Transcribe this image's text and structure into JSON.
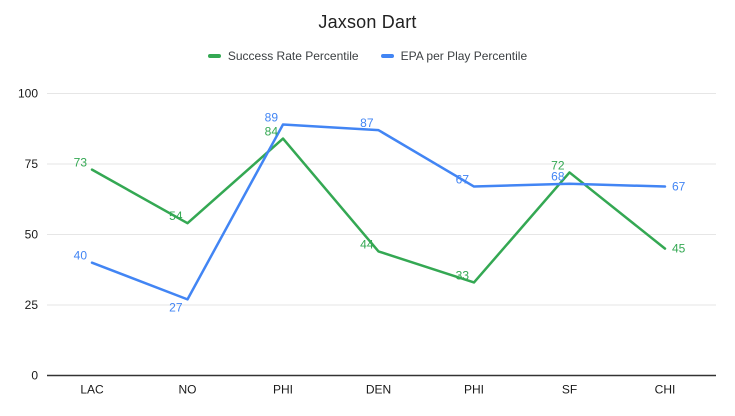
{
  "title": "Jaxson Dart",
  "colors": {
    "background": "#ffffff",
    "title_text": "#212121",
    "legend_text": "#3c4043",
    "axis_label": "#1a1a1a",
    "gridline": "#e6e6e6",
    "baseline": "#333333"
  },
  "chart_data": {
    "type": "line",
    "categories": [
      "LAC",
      "NO",
      "PHI",
      "DEN",
      "PHI",
      "SF",
      "CHI"
    ],
    "series": [
      {
        "name": "Success Rate Percentile",
        "color": "#34a853",
        "values": [
          73,
          54,
          84,
          44,
          33,
          72,
          45
        ]
      },
      {
        "name": "EPA per Play Percentile",
        "color": "#4285f4",
        "values": [
          40,
          27,
          89,
          87,
          67,
          68,
          67
        ]
      }
    ],
    "title": "Jaxson Dart",
    "xlabel": "",
    "ylabel": "",
    "ylim": [
      0,
      100
    ],
    "yticks": [
      0,
      25,
      50,
      75,
      100
    ],
    "grid": true,
    "legend_position": "top",
    "data_labels": true
  }
}
